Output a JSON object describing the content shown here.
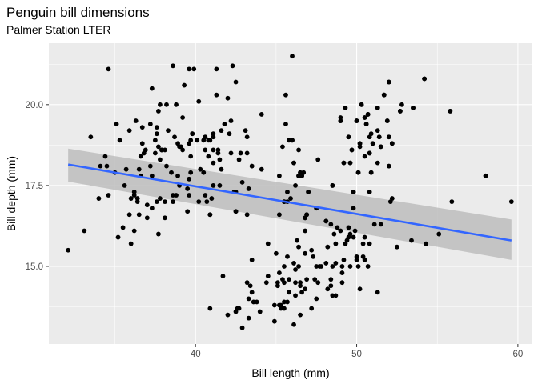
{
  "chart_data": {
    "type": "scatter",
    "title": "Penguin bill dimensions",
    "subtitle": "Palmer Station LTER",
    "xlabel": "Bill length (mm)",
    "ylabel": "Bill depth (mm)",
    "xlim": [
      30.9,
      60.9
    ],
    "ylim": [
      12.6,
      21.9
    ],
    "x_ticks": [
      40,
      50,
      60
    ],
    "y_ticks": [
      15.0,
      17.5,
      20.0
    ],
    "x_tick_labels": [
      "40",
      "50",
      "60"
    ],
    "y_tick_labels": [
      "15.0",
      "17.5",
      "20.0"
    ],
    "grid": true,
    "legend": "none",
    "colors": {
      "panel": "#ebebeb",
      "grid": "#ffffff",
      "point": "#000000",
      "trend_line": "#3366ff",
      "ribbon": "#bdbdbd"
    },
    "trend": {
      "type": "linear",
      "x": [
        32.1,
        59.6
      ],
      "y": [
        18.15,
        15.8
      ],
      "ribbon_lower": [
        17.62,
        15.2
      ],
      "ribbon_upper": [
        18.64,
        16.45
      ]
    },
    "points": [
      [
        32.1,
        15.5
      ],
      [
        33.1,
        16.1
      ],
      [
        33.5,
        19.0
      ],
      [
        34.0,
        17.1
      ],
      [
        34.1,
        18.1
      ],
      [
        34.4,
        18.4
      ],
      [
        34.6,
        21.1
      ],
      [
        34.5,
        18.1
      ],
      [
        34.6,
        17.2
      ],
      [
        35.0,
        17.9
      ],
      [
        35.1,
        19.4
      ],
      [
        35.2,
        15.9
      ],
      [
        35.3,
        18.9
      ],
      [
        35.5,
        16.2
      ],
      [
        35.6,
        17.5
      ],
      [
        35.7,
        18.0
      ],
      [
        35.9,
        16.6
      ],
      [
        35.9,
        19.2
      ],
      [
        36.0,
        15.7
      ],
      [
        36.0,
        17.1
      ],
      [
        36.2,
        17.2
      ],
      [
        36.2,
        16.1
      ],
      [
        36.2,
        17.3
      ],
      [
        36.3,
        19.5
      ],
      [
        36.4,
        17.1
      ],
      [
        36.4,
        17.0
      ],
      [
        36.5,
        18.0
      ],
      [
        36.5,
        16.6
      ],
      [
        36.6,
        17.8
      ],
      [
        36.6,
        18.4
      ],
      [
        36.7,
        19.3
      ],
      [
        36.7,
        18.8
      ],
      [
        36.8,
        18.5
      ],
      [
        36.9,
        18.6
      ],
      [
        37.0,
        16.9
      ],
      [
        37.0,
        16.5
      ],
      [
        37.2,
        18.1
      ],
      [
        37.2,
        19.4
      ],
      [
        37.3,
        20.5
      ],
      [
        37.3,
        17.8
      ],
      [
        37.3,
        16.8
      ],
      [
        37.5,
        18.9
      ],
      [
        37.5,
        18.5
      ],
      [
        37.6,
        19.1
      ],
      [
        37.6,
        17.0
      ],
      [
        37.6,
        19.3
      ],
      [
        37.7,
        18.7
      ],
      [
        37.7,
        19.8
      ],
      [
        37.7,
        16.0
      ],
      [
        37.8,
        17.1
      ],
      [
        37.8,
        18.3
      ],
      [
        37.8,
        20.0
      ],
      [
        37.9,
        18.6
      ],
      [
        37.9,
        18.6
      ],
      [
        38.1,
        18.6
      ],
      [
        38.1,
        17.0
      ],
      [
        38.1,
        16.5
      ],
      [
        38.2,
        18.1
      ],
      [
        38.2,
        20.0
      ],
      [
        38.3,
        19.2
      ],
      [
        38.5,
        17.9
      ],
      [
        38.6,
        21.2
      ],
      [
        38.6,
        17.2
      ],
      [
        38.6,
        17.0
      ],
      [
        38.7,
        19.0
      ],
      [
        38.8,
        17.2
      ],
      [
        38.8,
        20.0
      ],
      [
        38.9,
        17.8
      ],
      [
        38.9,
        18.8
      ],
      [
        39.0,
        17.5
      ],
      [
        39.0,
        18.7
      ],
      [
        39.1,
        18.7
      ],
      [
        39.2,
        19.6
      ],
      [
        39.2,
        18.6
      ],
      [
        39.3,
        20.6
      ],
      [
        39.5,
        17.4
      ],
      [
        39.5,
        16.7
      ],
      [
        39.6,
        17.7
      ],
      [
        39.6,
        21.1
      ],
      [
        39.6,
        18.8
      ],
      [
        39.6,
        17.2
      ],
      [
        39.7,
        18.4
      ],
      [
        39.7,
        17.9
      ],
      [
        39.7,
        18.9
      ],
      [
        39.8,
        19.1
      ],
      [
        40.1,
        18.9
      ],
      [
        40.2,
        17.0
      ],
      [
        40.2,
        20.1
      ],
      [
        40.3,
        18.0
      ],
      [
        40.5,
        17.9
      ],
      [
        40.5,
        18.9
      ],
      [
        40.6,
        18.6
      ],
      [
        40.6,
        19.0
      ],
      [
        40.6,
        17.2
      ],
      [
        40.7,
        17.0
      ],
      [
        40.8,
        18.4
      ],
      [
        40.8,
        18.9
      ],
      [
        40.9,
        16.6
      ],
      [
        40.9,
        18.9
      ],
      [
        41.0,
        17.1
      ],
      [
        41.1,
        19.1
      ],
      [
        41.1,
        18.2
      ],
      [
        41.1,
        17.5
      ],
      [
        41.1,
        19.0
      ],
      [
        41.1,
        18.6
      ],
      [
        41.3,
        21.1
      ],
      [
        41.3,
        20.3
      ],
      [
        41.4,
        18.6
      ],
      [
        41.4,
        18.5
      ],
      [
        41.5,
        17.5
      ],
      [
        41.5,
        18.3
      ],
      [
        41.6,
        18.0
      ],
      [
        41.6,
        19.2
      ],
      [
        41.8,
        19.4
      ],
      [
        42.0,
        20.2
      ],
      [
        42.1,
        19.1
      ],
      [
        42.2,
        18.5
      ],
      [
        42.2,
        19.5
      ],
      [
        42.3,
        21.2
      ],
      [
        42.4,
        17.3
      ],
      [
        42.5,
        20.7
      ],
      [
        42.5,
        16.7
      ],
      [
        42.7,
        18.3
      ],
      [
        42.8,
        18.5
      ],
      [
        42.9,
        17.6
      ],
      [
        43.1,
        19.2
      ],
      [
        43.2,
        18.5
      ],
      [
        43.2,
        19.0
      ],
      [
        43.3,
        17.4
      ],
      [
        43.5,
        18.1
      ],
      [
        44.1,
        19.7
      ],
      [
        44.1,
        18.0
      ],
      [
        45.6,
        20.3
      ],
      [
        45.8,
        18.9
      ],
      [
        46.0,
        21.5
      ],
      [
        46.1,
        18.2
      ],
      [
        46.4,
        18.6
      ],
      [
        46.5,
        17.9
      ],
      [
        46.6,
        17.8
      ],
      [
        46.7,
        17.9
      ],
      [
        46.8,
        16.5
      ],
      [
        47.0,
        17.3
      ],
      [
        47.5,
        16.8
      ],
      [
        48.1,
        16.4
      ],
      [
        48.5,
        17.5
      ],
      [
        49.0,
        19.5
      ],
      [
        49.2,
        18.2
      ],
      [
        49.5,
        19.0
      ],
      [
        49.6,
        18.2
      ],
      [
        49.7,
        18.6
      ],
      [
        49.8,
        17.3
      ],
      [
        50.0,
        19.5
      ],
      [
        50.1,
        17.9
      ],
      [
        50.2,
        18.8
      ],
      [
        50.3,
        20.0
      ],
      [
        50.5,
        19.6
      ],
      [
        50.6,
        19.4
      ],
      [
        50.7,
        19.7
      ],
      [
        50.8,
        18.5
      ],
      [
        50.9,
        17.9
      ],
      [
        51.0,
        18.8
      ],
      [
        51.3,
        19.9
      ],
      [
        51.4,
        19.0
      ],
      [
        51.5,
        18.7
      ],
      [
        51.7,
        20.3
      ],
      [
        51.9,
        19.5
      ],
      [
        52.0,
        19.0
      ],
      [
        52.0,
        18.1
      ],
      [
        52.0,
        20.7
      ],
      [
        52.2,
        18.8
      ],
      [
        52.7,
        19.8
      ],
      [
        53.5,
        19.9
      ],
      [
        54.2,
        20.8
      ],
      [
        55.8,
        19.8
      ],
      [
        40.9,
        13.7
      ],
      [
        41.7,
        14.7
      ],
      [
        42.0,
        13.5
      ],
      [
        42.5,
        13.6
      ],
      [
        42.6,
        13.7
      ],
      [
        42.7,
        13.7
      ],
      [
        42.9,
        13.1
      ],
      [
        43.2,
        14.5
      ],
      [
        43.3,
        13.4
      ],
      [
        43.3,
        14.0
      ],
      [
        43.4,
        14.4
      ],
      [
        43.5,
        14.2
      ],
      [
        43.5,
        15.2
      ],
      [
        43.6,
        13.9
      ],
      [
        43.8,
        13.9
      ],
      [
        44.0,
        13.6
      ],
      [
        44.4,
        14.5
      ],
      [
        44.5,
        14.7
      ],
      [
        44.5,
        15.7
      ],
      [
        44.9,
        13.3
      ],
      [
        44.9,
        13.8
      ],
      [
        45.0,
        15.4
      ],
      [
        45.1,
        14.4
      ],
      [
        45.1,
        14.5
      ],
      [
        45.2,
        13.8
      ],
      [
        45.2,
        14.8
      ],
      [
        45.3,
        13.7
      ],
      [
        45.3,
        13.8
      ],
      [
        45.4,
        14.6
      ],
      [
        45.5,
        13.7
      ],
      [
        45.5,
        13.9
      ],
      [
        45.5,
        14.5
      ],
      [
        45.5,
        15.0
      ],
      [
        45.7,
        13.9
      ],
      [
        45.7,
        15.3
      ],
      [
        45.8,
        14.2
      ],
      [
        45.8,
        14.6
      ],
      [
        46.1,
        13.2
      ],
      [
        46.1,
        15.1
      ],
      [
        46.2,
        14.1
      ],
      [
        46.2,
        14.5
      ],
      [
        46.2,
        14.9
      ],
      [
        46.3,
        15.8
      ],
      [
        46.4,
        15.0
      ],
      [
        46.4,
        15.6
      ],
      [
        46.5,
        13.5
      ],
      [
        46.5,
        14.4
      ],
      [
        46.5,
        14.5
      ],
      [
        46.6,
        14.2
      ],
      [
        46.8,
        14.3
      ],
      [
        46.8,
        15.4
      ],
      [
        46.8,
        16.1
      ],
      [
        46.9,
        14.6
      ],
      [
        47.2,
        13.7
      ],
      [
        47.2,
        15.5
      ],
      [
        47.3,
        15.3
      ],
      [
        47.4,
        14.6
      ],
      [
        47.5,
        14.0
      ],
      [
        47.5,
        15.0
      ],
      [
        47.6,
        14.5
      ],
      [
        47.7,
        15.0
      ],
      [
        47.8,
        15.0
      ],
      [
        48.1,
        15.1
      ],
      [
        48.2,
        14.3
      ],
      [
        48.2,
        15.6
      ],
      [
        48.4,
        14.4
      ],
      [
        48.4,
        14.6
      ],
      [
        48.4,
        16.3
      ],
      [
        48.5,
        14.1
      ],
      [
        48.5,
        15.0
      ],
      [
        48.6,
        16.0
      ],
      [
        48.7,
        14.1
      ],
      [
        48.7,
        15.1
      ],
      [
        48.7,
        15.7
      ],
      [
        48.8,
        16.2
      ],
      [
        49.0,
        16.1
      ],
      [
        49.1,
        14.5
      ],
      [
        49.1,
        14.8
      ],
      [
        49.1,
        15.0
      ],
      [
        49.2,
        15.2
      ],
      [
        49.3,
        15.7
      ],
      [
        49.4,
        15.8
      ],
      [
        49.5,
        15.9
      ],
      [
        49.5,
        16.2
      ],
      [
        49.6,
        15.0
      ],
      [
        49.6,
        16.0
      ],
      [
        49.8,
        15.9
      ],
      [
        49.8,
        16.8
      ],
      [
        49.9,
        16.1
      ],
      [
        50.0,
        15.2
      ],
      [
        50.0,
        15.3
      ],
      [
        50.1,
        15.0
      ],
      [
        50.2,
        14.3
      ],
      [
        50.4,
        15.3
      ],
      [
        50.4,
        15.7
      ],
      [
        50.5,
        15.2
      ],
      [
        50.5,
        15.9
      ],
      [
        50.7,
        15.0
      ],
      [
        50.8,
        15.7
      ],
      [
        50.8,
        17.3
      ],
      [
        51.1,
        16.3
      ],
      [
        51.3,
        14.2
      ],
      [
        51.5,
        16.3
      ],
      [
        52.1,
        17.0
      ],
      [
        52.2,
        17.1
      ],
      [
        52.5,
        15.6
      ],
      [
        53.4,
        15.8
      ],
      [
        54.3,
        15.7
      ],
      [
        55.1,
        16.0
      ],
      [
        55.9,
        17.0
      ],
      [
        58.0,
        17.8
      ],
      [
        59.6,
        17.0
      ],
      [
        46.0,
        18.9
      ],
      [
        45.5,
        17.0
      ],
      [
        46.9,
        16.6
      ],
      [
        46.5,
        17.9
      ],
      [
        50.0,
        19.5
      ],
      [
        51.3,
        18.2
      ],
      [
        45.4,
        18.7
      ],
      [
        52.7,
        19.8
      ],
      [
        45.2,
        17.8
      ],
      [
        46.1,
        18.2
      ],
      [
        51.3,
        19.2
      ],
      [
        46.0,
        18.9
      ],
      [
        51.3,
        19.9
      ],
      [
        46.6,
        17.8
      ],
      [
        51.7,
        20.3
      ],
      [
        47.0,
        17.3
      ],
      [
        52.0,
        18.1
      ],
      [
        45.9,
        17.1
      ],
      [
        50.5,
        19.6
      ],
      [
        50.3,
        20.0
      ],
      [
        58.0,
        17.8
      ],
      [
        46.4,
        17.8
      ],
      [
        49.2,
        18.2
      ],
      [
        42.4,
        17.3
      ],
      [
        48.5,
        17.5
      ],
      [
        43.2,
        16.6
      ],
      [
        50.6,
        19.4
      ],
      [
        46.7,
        17.9
      ],
      [
        52.0,
        19.0
      ],
      [
        50.5,
        18.4
      ],
      [
        49.5,
        19.0
      ],
      [
        46.4,
        17.8
      ],
      [
        52.8,
        20.0
      ],
      [
        40.9,
        16.6
      ],
      [
        54.2,
        20.8
      ],
      [
        42.5,
        16.7
      ],
      [
        51.0,
        18.8
      ],
      [
        49.7,
        18.6
      ],
      [
        47.5,
        16.8
      ],
      [
        47.6,
        18.3
      ],
      [
        52.0,
        20.7
      ],
      [
        46.9,
        16.6
      ],
      [
        53.5,
        19.9
      ],
      [
        49.0,
        19.5
      ],
      [
        46.2,
        17.5
      ],
      [
        50.9,
        19.1
      ],
      [
        45.5,
        17.0
      ],
      [
        50.9,
        17.9
      ],
      [
        50.8,
        18.5
      ],
      [
        50.1,
        17.9
      ],
      [
        49.0,
        19.6
      ],
      [
        51.5,
        18.7
      ],
      [
        49.8,
        17.3
      ],
      [
        48.1,
        16.4
      ],
      [
        51.4,
        19.0
      ],
      [
        45.7,
        17.3
      ],
      [
        50.7,
        19.7
      ],
      [
        42.5,
        17.3
      ],
      [
        52.2,
        18.8
      ],
      [
        45.2,
        16.6
      ],
      [
        49.3,
        19.9
      ],
      [
        50.2,
        18.8
      ],
      [
        45.6,
        19.4
      ],
      [
        51.9,
        19.5
      ],
      [
        46.8,
        16.5
      ],
      [
        45.7,
        17.0
      ],
      [
        55.8,
        19.8
      ],
      [
        43.5,
        18.1
      ],
      [
        49.6,
        18.2
      ],
      [
        50.8,
        19.0
      ],
      [
        50.2,
        18.7
      ],
      [
        39.8,
        19.1
      ],
      [
        40.6,
        19.0
      ],
      [
        39.9,
        21.1
      ]
    ]
  }
}
